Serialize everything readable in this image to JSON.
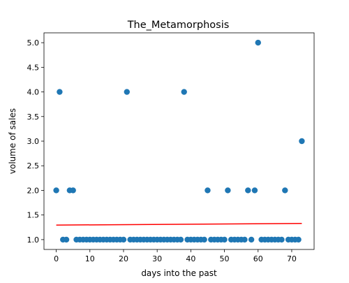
{
  "chart_data": {
    "type": "scatter",
    "title": "The_Metamorphosis",
    "xlabel": "days into the past",
    "ylabel": "volume of sales",
    "xlim": [
      -3.65,
      76.65
    ],
    "ylim": [
      0.8,
      5.2
    ],
    "x_ticks": [
      0,
      10,
      20,
      30,
      40,
      50,
      60,
      70
    ],
    "y_ticks": [
      1.0,
      1.5,
      2.0,
      2.5,
      3.0,
      3.5,
      4.0,
      4.5,
      5.0
    ],
    "grid": false,
    "series": [
      {
        "kind": "points",
        "color": "#1f77b4",
        "x": [
          0,
          1,
          2,
          3,
          4,
          5,
          6,
          7,
          8,
          9,
          10,
          11,
          12,
          13,
          14,
          15,
          16,
          17,
          18,
          19,
          20,
          21,
          22,
          23,
          24,
          25,
          26,
          27,
          28,
          29,
          30,
          31,
          32,
          33,
          34,
          35,
          36,
          37,
          38,
          39,
          40,
          41,
          42,
          43,
          44,
          45,
          46,
          47,
          48,
          49,
          50,
          51,
          52,
          53,
          54,
          55,
          56,
          57,
          58,
          59,
          60,
          61,
          62,
          63,
          64,
          65,
          66,
          67,
          68,
          69,
          70,
          71,
          72,
          73
        ],
        "y": [
          2,
          4,
          1,
          1,
          2,
          2,
          1,
          1,
          1,
          1,
          1,
          1,
          1,
          1,
          1,
          1,
          1,
          1,
          1,
          1,
          1,
          4,
          1,
          1,
          1,
          1,
          1,
          1,
          1,
          1,
          1,
          1,
          1,
          1,
          1,
          1,
          1,
          1,
          4,
          1,
          1,
          1,
          1,
          1,
          1,
          2,
          1,
          1,
          1,
          1,
          1,
          2,
          1,
          1,
          1,
          1,
          1,
          2,
          1,
          2,
          5,
          1,
          1,
          1,
          1,
          1,
          1,
          1,
          2,
          1,
          1,
          1,
          1,
          3
        ]
      },
      {
        "kind": "trend-line",
        "color": "#ff0000",
        "x": [
          0,
          73
        ],
        "y": [
          1.295,
          1.328
        ]
      }
    ]
  }
}
